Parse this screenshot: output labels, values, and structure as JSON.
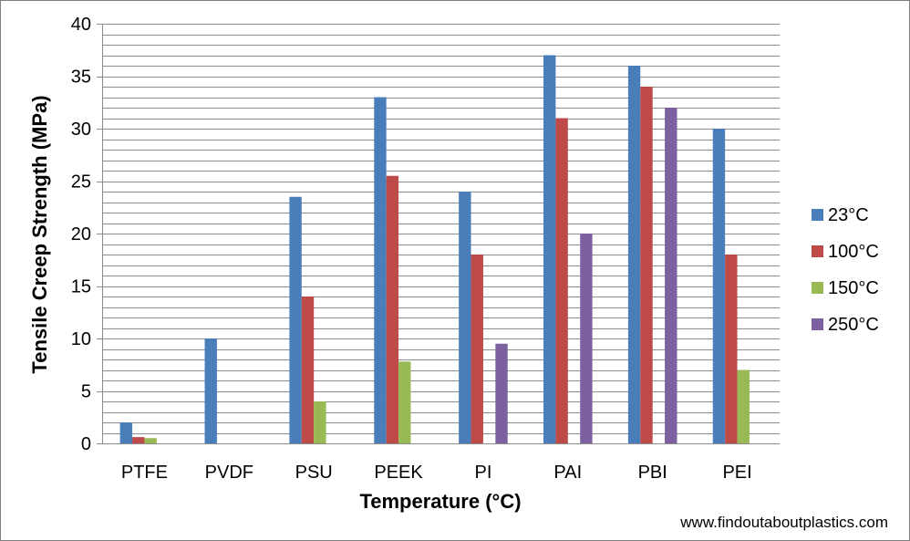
{
  "chart_data": {
    "type": "bar",
    "title": "",
    "xlabel": "Temperature (°C)",
    "ylabel": "Tensile Creep Strength (MPa)",
    "categories": [
      "PTFE",
      "PVDF",
      "PSU",
      "PEEK",
      "PI",
      "PAI",
      "PBI",
      "PEI"
    ],
    "series": [
      {
        "name": "23°C",
        "color": "#4a7ebb",
        "values": [
          2,
          10,
          23.5,
          33,
          24,
          37,
          36,
          30
        ]
      },
      {
        "name": "100°C",
        "color": "#be4b48",
        "values": [
          0.6,
          null,
          14,
          25.5,
          18,
          31,
          34,
          18
        ]
      },
      {
        "name": "150°C",
        "color": "#98b954",
        "values": [
          0.5,
          null,
          4,
          7.8,
          null,
          null,
          null,
          7
        ]
      },
      {
        "name": "250°C",
        "color": "#7d60a0",
        "values": [
          null,
          null,
          null,
          null,
          9.5,
          20,
          32,
          null
        ]
      }
    ],
    "ylim": [
      0,
      40
    ],
    "yticks": [
      0,
      5,
      10,
      15,
      20,
      25,
      30,
      35,
      40
    ],
    "minor_gridline_step": 1,
    "legend_position": "right",
    "grid": true
  },
  "watermark": "www.findoutaboutplastics.com"
}
